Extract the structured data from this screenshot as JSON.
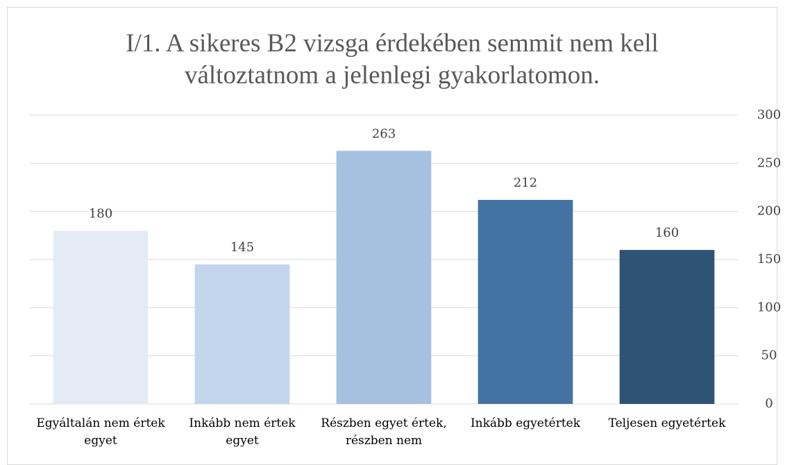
{
  "chart_data": {
    "type": "bar",
    "title": "I/1. A sikeres B2 vizsga érdekében semmit nem kell változtatnom a jelenlegi gyakorlatomon.",
    "categories": [
      "Egyáltalán nem értek egyet",
      "Inkább nem értek egyet",
      "Részben egyet értek, részben nem",
      "Inkább egyetértek",
      "Teljesen egyetértek"
    ],
    "values": [
      180,
      145,
      263,
      212,
      160
    ],
    "colors": [
      "#e4ebf5",
      "#c3d5ec",
      "#a6c0e0",
      "#4472a2",
      "#2f5375"
    ],
    "ylim": [
      0,
      300
    ],
    "yticks": [
      0,
      50,
      100,
      150,
      200,
      250,
      300
    ],
    "yaxis_side": "right",
    "grid": true
  }
}
